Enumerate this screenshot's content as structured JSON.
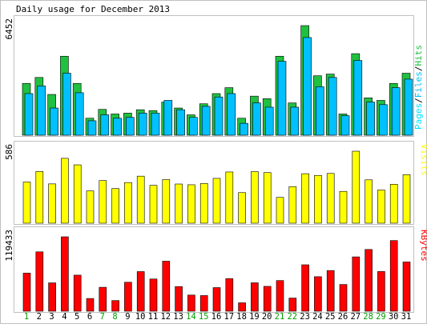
{
  "colors": {
    "frame": "#c0c0c0",
    "hits": "#00805c",
    "hits_fill": "#20c040",
    "files": "#0080ff",
    "files_fill": "#00c0ff",
    "pages": "#00e0ff",
    "visits": "#ffff00",
    "kbytes": "#ff0000",
    "weekend_day": "#00a000",
    "weekday": "#000000"
  },
  "chart_data": {
    "type": "bar",
    "title": "Daily usage for December 2013",
    "categories": [
      "1",
      "2",
      "3",
      "4",
      "5",
      "6",
      "7",
      "8",
      "9",
      "10",
      "11",
      "12",
      "13",
      "14",
      "15",
      "16",
      "17",
      "18",
      "19",
      "20",
      "21",
      "22",
      "23",
      "24",
      "25",
      "26",
      "27",
      "28",
      "29",
      "30",
      "31"
    ],
    "weekend_days": [
      "1",
      "7",
      "8",
      "14",
      "15",
      "21",
      "22",
      "28",
      "29"
    ],
    "panels": [
      {
        "name": "hits_files_pages",
        "ylabel_parts": [
          "Pages",
          "/",
          "Files",
          "/",
          "Hits"
        ],
        "max_label": "6452",
        "ymax": 6452,
        "series": [
          {
            "name": "Hits",
            "values": [
              3050,
              3400,
              2400,
              4650,
              3050,
              1000,
              1520,
              1250,
              1300,
              1500,
              1450,
              1950,
              1600,
              1200,
              1850,
              2450,
              2800,
              1000,
              2300,
              2150,
              4650,
              1900,
              6452,
              3500,
              3600,
              1250,
              4800,
              2200,
              2050,
              3050,
              3650
            ]
          },
          {
            "name": "Files",
            "values": [
              2450,
              2900,
              1600,
              3650,
              2500,
              850,
              1200,
              1000,
              1050,
              1300,
              1300,
              2050,
              1500,
              1050,
              1700,
              2250,
              2450,
              700,
              1900,
              1650,
              4350,
              1650,
              5750,
              2850,
              3400,
              1150,
              4400,
              1950,
              1800,
              2800,
              3300
            ]
          }
        ]
      },
      {
        "name": "visits",
        "ylabel_parts": [
          "Visits"
        ],
        "max_label": "586",
        "ymax": 586,
        "series": [
          {
            "name": "Visits",
            "values": [
              335,
              421,
              320,
              528,
              475,
              263,
              347,
              282,
              331,
              383,
              308,
              355,
              319,
              313,
              323,
              365,
              417,
              249,
              420,
              412,
              210,
              298,
              403,
              389,
              405,
              259,
              586,
              353,
              270,
              317,
              395
            ]
          }
        ]
      },
      {
        "name": "kbytes",
        "ylabel_parts": [
          "KBytes"
        ],
        "max_label": "119433",
        "ymax": 119433,
        "series": [
          {
            "name": "KBytes",
            "values": [
              61100,
              95300,
              45500,
              119433,
              57900,
              20400,
              38400,
              17100,
              46500,
              63600,
              51700,
              80300,
              39600,
              25900,
              25100,
              37900,
              52300,
              13500,
              45600,
              39900,
              49200,
              21100,
              74500,
              55400,
              65300,
              42900,
              87200,
              99100,
              63700,
              113400,
              79000
            ]
          }
        ]
      }
    ]
  }
}
